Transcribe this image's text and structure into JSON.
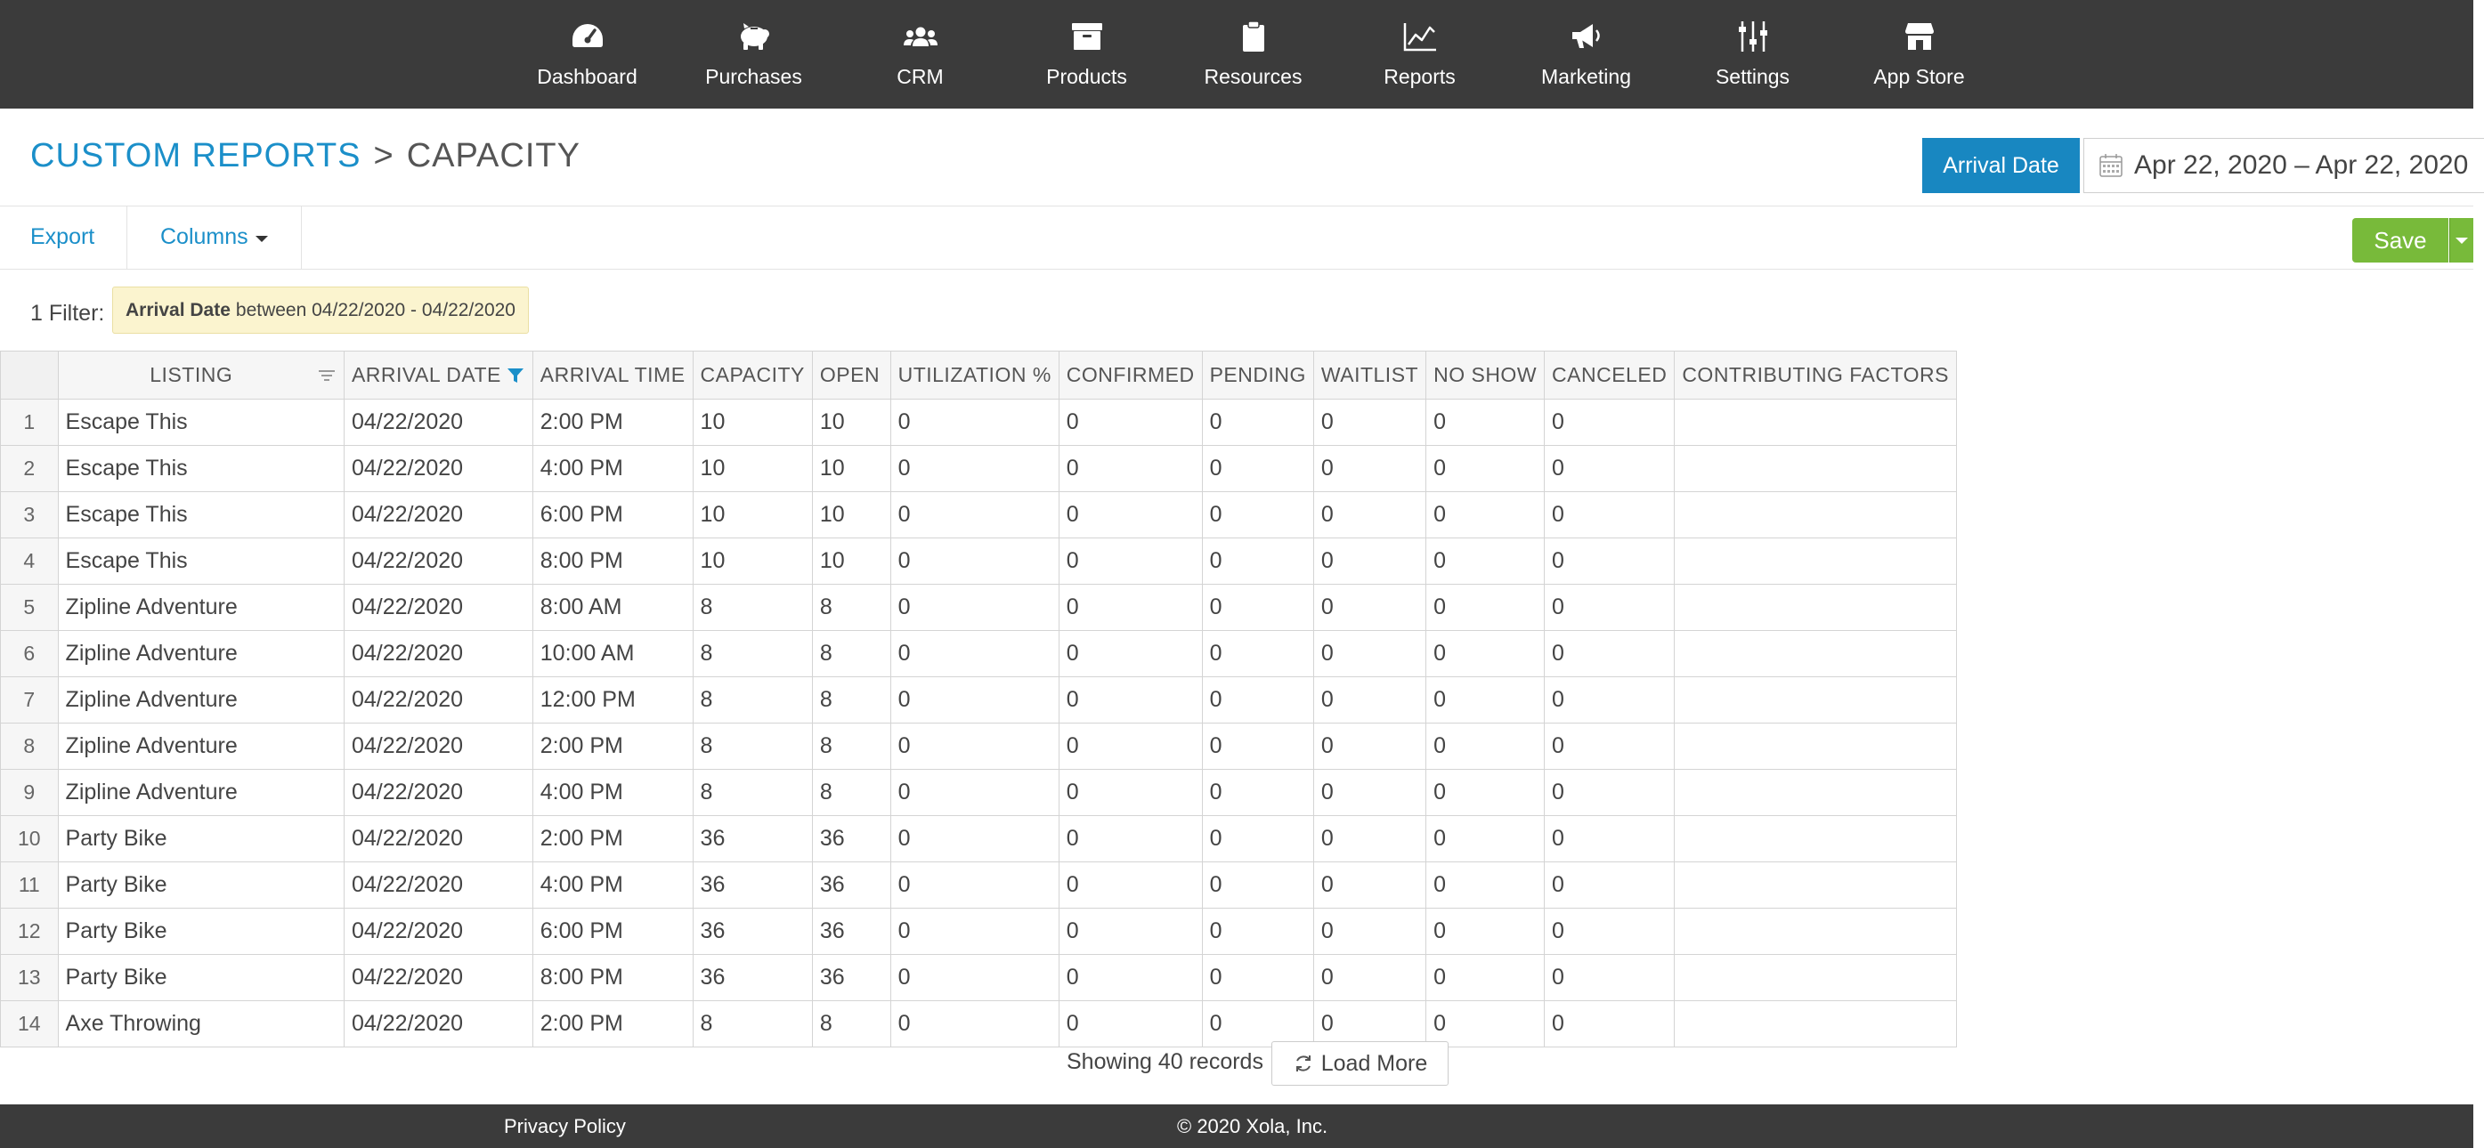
{
  "nav": {
    "items": [
      {
        "label": "Dashboard",
        "icon": "dashboard-icon"
      },
      {
        "label": "Purchases",
        "icon": "piggy-bank-icon"
      },
      {
        "label": "CRM",
        "icon": "users-icon"
      },
      {
        "label": "Products",
        "icon": "archive-box-icon"
      },
      {
        "label": "Resources",
        "icon": "clipboard-icon"
      },
      {
        "label": "Reports",
        "icon": "line-chart-icon"
      },
      {
        "label": "Marketing",
        "icon": "megaphone-icon"
      },
      {
        "label": "Settings",
        "icon": "sliders-icon"
      },
      {
        "label": "App Store",
        "icon": "store-icon"
      }
    ]
  },
  "header": {
    "breadcrumb_root": "CUSTOM REPORTS",
    "breadcrumb_sep": ">",
    "breadcrumb_current": "CAPACITY",
    "date_field_button": "Arrival Date",
    "date_range": "Apr 22, 2020 – Apr 22, 2020"
  },
  "toolbar": {
    "export_label": "Export",
    "columns_label": "Columns",
    "save_label": "Save"
  },
  "filter": {
    "count_label": "1 Filter:",
    "field": "Arrival Date",
    "rest": "between 04/22/2020 - 04/22/2020"
  },
  "grid": {
    "columns": [
      "LISTING",
      "ARRIVAL DATE",
      "ARRIVAL TIME",
      "CAPACITY",
      "OPEN",
      "UTILIZATION %",
      "CONFIRMED",
      "PENDING",
      "WAITLIST",
      "NO SHOW",
      "CANCELED",
      "CONTRIBUTING FACTORS"
    ],
    "rows": [
      [
        "1",
        "Escape This",
        "04/22/2020",
        "2:00 PM",
        "10",
        "10",
        "0",
        "0",
        "0",
        "0",
        "0",
        "0",
        ""
      ],
      [
        "2",
        "Escape This",
        "04/22/2020",
        "4:00 PM",
        "10",
        "10",
        "0",
        "0",
        "0",
        "0",
        "0",
        "0",
        ""
      ],
      [
        "3",
        "Escape This",
        "04/22/2020",
        "6:00 PM",
        "10",
        "10",
        "0",
        "0",
        "0",
        "0",
        "0",
        "0",
        ""
      ],
      [
        "4",
        "Escape This",
        "04/22/2020",
        "8:00 PM",
        "10",
        "10",
        "0",
        "0",
        "0",
        "0",
        "0",
        "0",
        ""
      ],
      [
        "5",
        "Zipline Adventure",
        "04/22/2020",
        "8:00 AM",
        "8",
        "8",
        "0",
        "0",
        "0",
        "0",
        "0",
        "0",
        ""
      ],
      [
        "6",
        "Zipline Adventure",
        "04/22/2020",
        "10:00 AM",
        "8",
        "8",
        "0",
        "0",
        "0",
        "0",
        "0",
        "0",
        ""
      ],
      [
        "7",
        "Zipline Adventure",
        "04/22/2020",
        "12:00 PM",
        "8",
        "8",
        "0",
        "0",
        "0",
        "0",
        "0",
        "0",
        ""
      ],
      [
        "8",
        "Zipline Adventure",
        "04/22/2020",
        "2:00 PM",
        "8",
        "8",
        "0",
        "0",
        "0",
        "0",
        "0",
        "0",
        ""
      ],
      [
        "9",
        "Zipline Adventure",
        "04/22/2020",
        "4:00 PM",
        "8",
        "8",
        "0",
        "0",
        "0",
        "0",
        "0",
        "0",
        ""
      ],
      [
        "10",
        "Party Bike",
        "04/22/2020",
        "2:00 PM",
        "36",
        "36",
        "0",
        "0",
        "0",
        "0",
        "0",
        "0",
        ""
      ],
      [
        "11",
        "Party Bike",
        "04/22/2020",
        "4:00 PM",
        "36",
        "36",
        "0",
        "0",
        "0",
        "0",
        "0",
        "0",
        ""
      ],
      [
        "12",
        "Party Bike",
        "04/22/2020",
        "6:00 PM",
        "36",
        "36",
        "0",
        "0",
        "0",
        "0",
        "0",
        "0",
        ""
      ],
      [
        "13",
        "Party Bike",
        "04/22/2020",
        "8:00 PM",
        "36",
        "36",
        "0",
        "0",
        "0",
        "0",
        "0",
        "0",
        ""
      ],
      [
        "14",
        "Axe Throwing",
        "04/22/2020",
        "2:00 PM",
        "8",
        "8",
        "0",
        "0",
        "0",
        "0",
        "0",
        "0",
        ""
      ]
    ]
  },
  "pager": {
    "showing": "Showing 40 records",
    "load_more": "Load More"
  },
  "footer": {
    "privacy": "Privacy Policy",
    "copyright": "© 2020 Xola, Inc."
  },
  "colors": {
    "nav_bg": "#3b3b3b",
    "accent_blue": "#1887c1",
    "link_blue": "#1b8fc9",
    "save_green": "#78ba3a",
    "filter_bg": "#fbf4cf"
  }
}
